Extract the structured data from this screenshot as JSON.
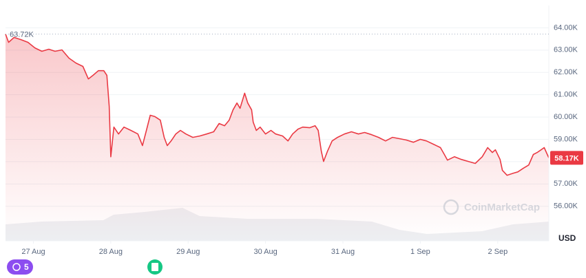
{
  "chart_data": {
    "type": "area",
    "x": [
      -0.36,
      -0.32,
      -0.25,
      -0.16,
      -0.07,
      0.02,
      0.11,
      0.2,
      0.28,
      0.37,
      0.46,
      0.55,
      0.64,
      0.71,
      0.77,
      0.84,
      0.91,
      0.95,
      0.98,
      1.0,
      1.04,
      1.1,
      1.17,
      1.26,
      1.35,
      1.41,
      1.46,
      1.51,
      1.57,
      1.64,
      1.69,
      1.73,
      1.78,
      1.84,
      1.9,
      1.97,
      2.06,
      2.15,
      2.24,
      2.33,
      2.4,
      2.47,
      2.53,
      2.58,
      2.63,
      2.67,
      2.73,
      2.77,
      2.82,
      2.84,
      2.88,
      2.93,
      3.0,
      3.07,
      3.13,
      3.22,
      3.29,
      3.35,
      3.42,
      3.48,
      3.57,
      3.64,
      3.68,
      3.72,
      3.75,
      3.8,
      3.86,
      3.93,
      4.02,
      4.11,
      4.2,
      4.28,
      4.37,
      4.46,
      4.55,
      4.64,
      4.73,
      4.82,
      4.91,
      5.0,
      5.08,
      5.17,
      5.26,
      5.31,
      5.35,
      5.44,
      5.53,
      5.62,
      5.71,
      5.8,
      5.87,
      5.93,
      5.97,
      6.03,
      6.06,
      6.12,
      6.2,
      6.26,
      6.33,
      6.4,
      6.46,
      6.51,
      6.56,
      6.6,
      6.66
    ],
    "series": [
      {
        "color": "#ea3943",
        "values": [
          63720,
          63350,
          63570,
          63470,
          63350,
          63100,
          62950,
          63040,
          62950,
          63010,
          62640,
          62420,
          62270,
          61710,
          61870,
          62080,
          62080,
          61870,
          60480,
          58220,
          59550,
          59240,
          59550,
          59400,
          59240,
          58720,
          59400,
          60080,
          60020,
          59860,
          59090,
          58720,
          58930,
          59240,
          59400,
          59240,
          59090,
          59150,
          59240,
          59340,
          59710,
          59610,
          59860,
          60320,
          60630,
          60390,
          61070,
          60630,
          60320,
          59770,
          59400,
          59550,
          59240,
          59400,
          59240,
          59150,
          58930,
          59240,
          59460,
          59550,
          59520,
          59610,
          59400,
          58470,
          58010,
          58470,
          58930,
          59090,
          59240,
          59340,
          59240,
          59310,
          59210,
          59090,
          58930,
          59090,
          59030,
          58970,
          58870,
          59000,
          58930,
          58780,
          58630,
          58320,
          58070,
          58220,
          58100,
          58010,
          57920,
          58220,
          58630,
          58410,
          58530,
          58100,
          57610,
          57390,
          57480,
          57540,
          57700,
          57850,
          58320,
          58410,
          58530,
          58630,
          58170
        ]
      }
    ],
    "xlim": [
      -0.36,
      6.66
    ],
    "xticks": [
      {
        "value": 0,
        "label": "27 Aug"
      },
      {
        "value": 1,
        "label": "28 Aug"
      },
      {
        "value": 2,
        "label": "29 Aug"
      },
      {
        "value": 3,
        "label": "30 Aug"
      },
      {
        "value": 4,
        "label": "31 Aug"
      },
      {
        "value": 5,
        "label": "1 Sep"
      },
      {
        "value": 6,
        "label": "2 Sep"
      }
    ],
    "ylim": [
      54450,
      65000
    ],
    "yticks": [
      {
        "value": 56000,
        "label": "56.00K"
      },
      {
        "value": 57000,
        "label": "57.00K"
      },
      {
        "value": 58000,
        "label": "58.00K"
      },
      {
        "value": 59000,
        "label": "59.00K"
      },
      {
        "value": 60000,
        "label": "60.00K"
      },
      {
        "value": 61000,
        "label": "61.00K"
      },
      {
        "value": 62000,
        "label": "62.00K"
      },
      {
        "value": 63000,
        "label": "63.00K"
      },
      {
        "value": 64000,
        "label": "64.00K"
      }
    ],
    "y_axis_label": "USD",
    "grid": true,
    "high_marker": {
      "value": 63720,
      "label": "63.72K"
    },
    "current_marker": {
      "value": 58170,
      "label": "58.17K"
    },
    "watermark": "CoinMarketCap",
    "badge": "5"
  }
}
